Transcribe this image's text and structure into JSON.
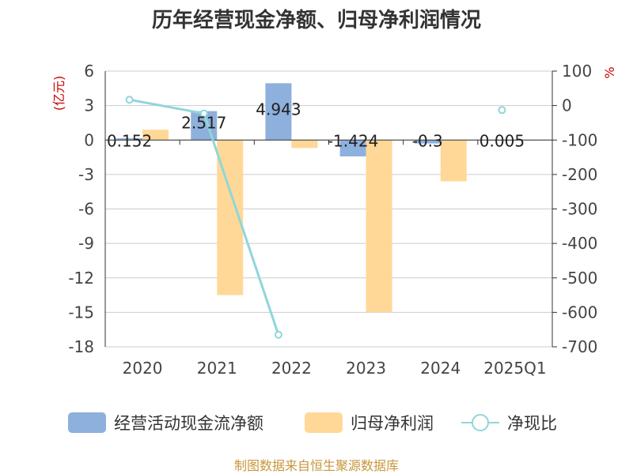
{
  "chart_data": {
    "type": "bar",
    "title": "历年经营现金净额、归母净利润情况",
    "categories": [
      "2020",
      "2021",
      "2022",
      "2023",
      "2024",
      "2025Q1"
    ],
    "left_axis": {
      "label": "(亿元)",
      "ylim": [
        -18,
        6
      ],
      "ticks": [
        6,
        3,
        0,
        -3,
        -6,
        -9,
        -12,
        -15,
        -18
      ]
    },
    "right_axis": {
      "label": "%",
      "ylim": [
        -700,
        100
      ],
      "ticks": [
        100,
        0,
        -100,
        -200,
        -300,
        -400,
        -500,
        -600,
        -700
      ]
    },
    "series": [
      {
        "name": "经营活动现金流净额",
        "axis": "left",
        "color": "#8eb0dc",
        "values": [
          0.152,
          2.517,
          4.943,
          -1.424,
          -0.3,
          0.005
        ],
        "labels": [
          "0.152",
          "2.517",
          "4.943",
          "-1.424",
          "-0.3",
          "0.005"
        ]
      },
      {
        "name": "归母净利润",
        "axis": "left",
        "color": "#ffd898",
        "values": [
          0.9,
          -13.5,
          -0.7,
          -15.0,
          -3.6,
          0.02
        ]
      },
      {
        "name": "净现比",
        "axis": "right",
        "type": "line",
        "color": "#8fd6da",
        "values": [
          17,
          -23,
          -665,
          null,
          null,
          -13
        ]
      }
    ],
    "legend_position": "bottom",
    "grid": true
  },
  "footer": "制图数据来自恒生聚源数据库"
}
